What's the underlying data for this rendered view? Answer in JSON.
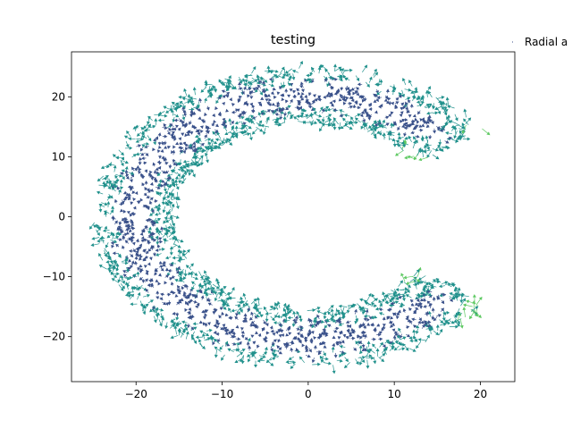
{
  "chart_data": {
    "type": "scatter",
    "subtype": "quiver",
    "title": "testing",
    "xlabel": "",
    "ylabel": "",
    "xlim": [
      -27.5,
      24
    ],
    "ylim": [
      -27.5,
      27.5
    ],
    "xticks": [
      -20,
      -10,
      0,
      10,
      20
    ],
    "yticks": [
      -20,
      -10,
      0,
      10,
      20
    ],
    "xtick_labels": [
      "−20",
      "−10",
      "0",
      "10",
      "20"
    ],
    "ytick_labels": [
      "−20",
      "−10",
      "0",
      "10",
      "20"
    ],
    "grid": false,
    "legend": {
      "position": "top-right",
      "entries": [
        "Radial a"
      ]
    },
    "series": [
      {
        "name": "Radial a",
        "shape": "C-shaped annulus of arrows",
        "inner_radius": 15.5,
        "outer_radius": 25,
        "gap_from_angle_deg": -35,
        "gap_to_angle_deg": 35,
        "colormap": "viridis"
      }
    ],
    "colors": {
      "low": "#3b528b",
      "mid": "#21918c",
      "high": "#5ec962",
      "peak": "#fde725"
    }
  }
}
